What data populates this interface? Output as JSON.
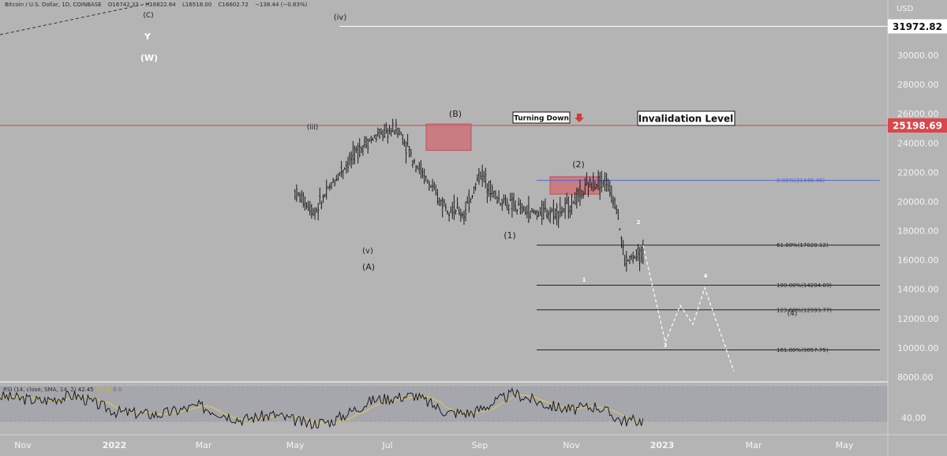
{
  "header": {
    "symbol": "Bitcoin / U.S. Dollar, 1D, COINBASE",
    "open": "O16742.33",
    "high": "H16822.64",
    "low": "L16518.00",
    "close": "C16602.72",
    "change": "−138.44 (−0.83%)"
  },
  "chart_data": {
    "type": "candlestick",
    "currency": "USD",
    "x_ticks": [
      "Nov",
      "2022",
      "Mar",
      "May",
      "Jul",
      "Sep",
      "Nov",
      "2023",
      "Mar",
      "May"
    ],
    "y_ticks": [
      "30000.00",
      "28000.00",
      "26000.00",
      "24000.00",
      "22000.00",
      "20000.00",
      "18000.00",
      "16000.00",
      "14000.00",
      "12000.00",
      "10000.00",
      "8000.00"
    ],
    "ylim": [
      8000,
      34000
    ],
    "price_markers": [
      {
        "label": "31972.82",
        "value": 31972.82,
        "style": "white"
      },
      {
        "label": "25198.69",
        "value": 25198.69,
        "style": "red"
      }
    ],
    "annotations": {
      "turning_down": "Turning Down",
      "invalidation": "Invalidation Level",
      "waves": [
        {
          "label": "(C)"
        },
        {
          "label": "Y"
        },
        {
          "label": "(W)"
        },
        {
          "label": "(iv)"
        },
        {
          "label": "(iii)"
        },
        {
          "label": "(v)"
        },
        {
          "label": "(A)"
        },
        {
          "label": "(B)"
        },
        {
          "label": "(1)"
        },
        {
          "label": "(2)"
        },
        {
          "label": "(4)"
        },
        {
          "label": "1"
        },
        {
          "label": "2"
        },
        {
          "label": "3"
        },
        {
          "label": "4"
        }
      ]
    },
    "fib_levels": [
      {
        "label": "0.00%(21446.46)",
        "value": 21446.46,
        "color": "#5066d8"
      },
      {
        "label": "61.80%(17020.12)",
        "value": 17020.12,
        "color": "#222222"
      },
      {
        "label": "100.00%(14284.09)",
        "value": 14284.09,
        "color": "#222222"
      },
      {
        "label": "123.60%(12593.77)",
        "value": 12593.77,
        "color": "#222222"
      },
      {
        "label": "161.80%(9857.75)",
        "value": 9857.75,
        "color": "#222222"
      }
    ],
    "resistance_boxes": [
      {
        "name": "B-zone",
        "from_value": 25300,
        "to_value": 23500
      },
      {
        "name": "2-zone",
        "from_value": 21700,
        "to_value": 20500
      }
    ],
    "projection": [
      {
        "wave": "start",
        "value": 17000
      },
      {
        "wave": "3",
        "value": 10400
      },
      {
        "wave": "a",
        "value": 12900
      },
      {
        "wave": "b",
        "value": 11600
      },
      {
        "wave": "4",
        "value": 14100
      },
      {
        "wave": "end",
        "value": 8400
      }
    ],
    "price_keypoints": [
      [
        0,
        34000
      ],
      [
        20,
        32500
      ],
      [
        40,
        30800
      ],
      [
        55,
        32600
      ],
      [
        75,
        34000
      ],
      [
        95,
        29000
      ],
      [
        110,
        30000
      ],
      [
        120,
        29200
      ],
      [
        130,
        31600
      ],
      [
        140,
        30000
      ],
      [
        150,
        22500
      ],
      [
        160,
        17700
      ],
      [
        175,
        21000
      ],
      [
        190,
        19300
      ],
      [
        205,
        22000
      ],
      [
        220,
        24000
      ],
      [
        230,
        24600
      ],
      [
        240,
        25000
      ],
      [
        250,
        22800
      ],
      [
        265,
        20100
      ],
      [
        280,
        19100
      ],
      [
        290,
        22000
      ],
      [
        300,
        20200
      ],
      [
        320,
        19200
      ],
      [
        340,
        19400
      ],
      [
        358,
        21300
      ],
      [
        365,
        21400
      ],
      [
        372,
        19800
      ],
      [
        377,
        15900
      ],
      [
        390,
        16500
      ],
      [
        400,
        15900
      ],
      [
        412,
        16900
      ],
      [
        420,
        17300
      ],
      [
        425,
        18200
      ],
      [
        430,
        16900
      ],
      [
        434,
        16700
      ]
    ],
    "rsi": {
      "label": "RSI (14, close, SMA, 14, 2)",
      "value": "42.45",
      "ma_value": "49.38",
      "extra": "0  0",
      "y_tick": "40.00",
      "keypoints": [
        [
          0,
          62
        ],
        [
          25,
          57
        ],
        [
          45,
          63
        ],
        [
          70,
          46
        ],
        [
          95,
          43
        ],
        [
          120,
          52
        ],
        [
          145,
          38
        ],
        [
          165,
          43
        ],
        [
          185,
          34
        ],
        [
          200,
          36
        ],
        [
          225,
          58
        ],
        [
          250,
          63
        ],
        [
          270,
          45
        ],
        [
          285,
          45
        ],
        [
          310,
          65
        ],
        [
          330,
          53
        ],
        [
          345,
          48
        ],
        [
          360,
          52
        ],
        [
          375,
          37
        ],
        [
          395,
          37
        ],
        [
          410,
          57
        ],
        [
          430,
          47
        ],
        [
          434,
          44
        ]
      ]
    }
  },
  "colors": {
    "background": "#b4b4b4",
    "panel_bg": "#a2a2ab",
    "candles": "#1c1c1c",
    "red_line": "#c84a4a",
    "red_box": "#d06a72",
    "fib_blue": "#5066d8",
    "rsi_line": "#1c1c1c",
    "rsi_ma": "#d8c65a"
  }
}
